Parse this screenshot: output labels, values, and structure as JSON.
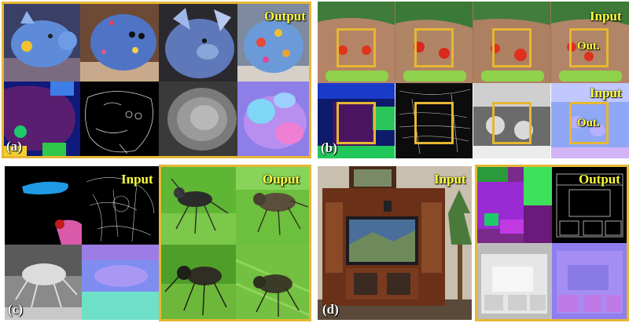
{
  "panels": {
    "a": {
      "label": "(a)",
      "tag": "Output"
    },
    "b": {
      "label": "(b)",
      "tag_top": "Input",
      "out_top": "Out.",
      "tag_bottom": "Input",
      "out_bottom": "Out."
    },
    "c": {
      "label": "(c)",
      "tag_input": "Input",
      "tag_output": "Ouput"
    },
    "d": {
      "label": "(d)",
      "tag_input": "Input",
      "tag_output": "Output"
    }
  },
  "colors": {
    "frame": "#e6b733",
    "tag_text": "#ffff3a",
    "label_text": "#ffffff"
  }
}
